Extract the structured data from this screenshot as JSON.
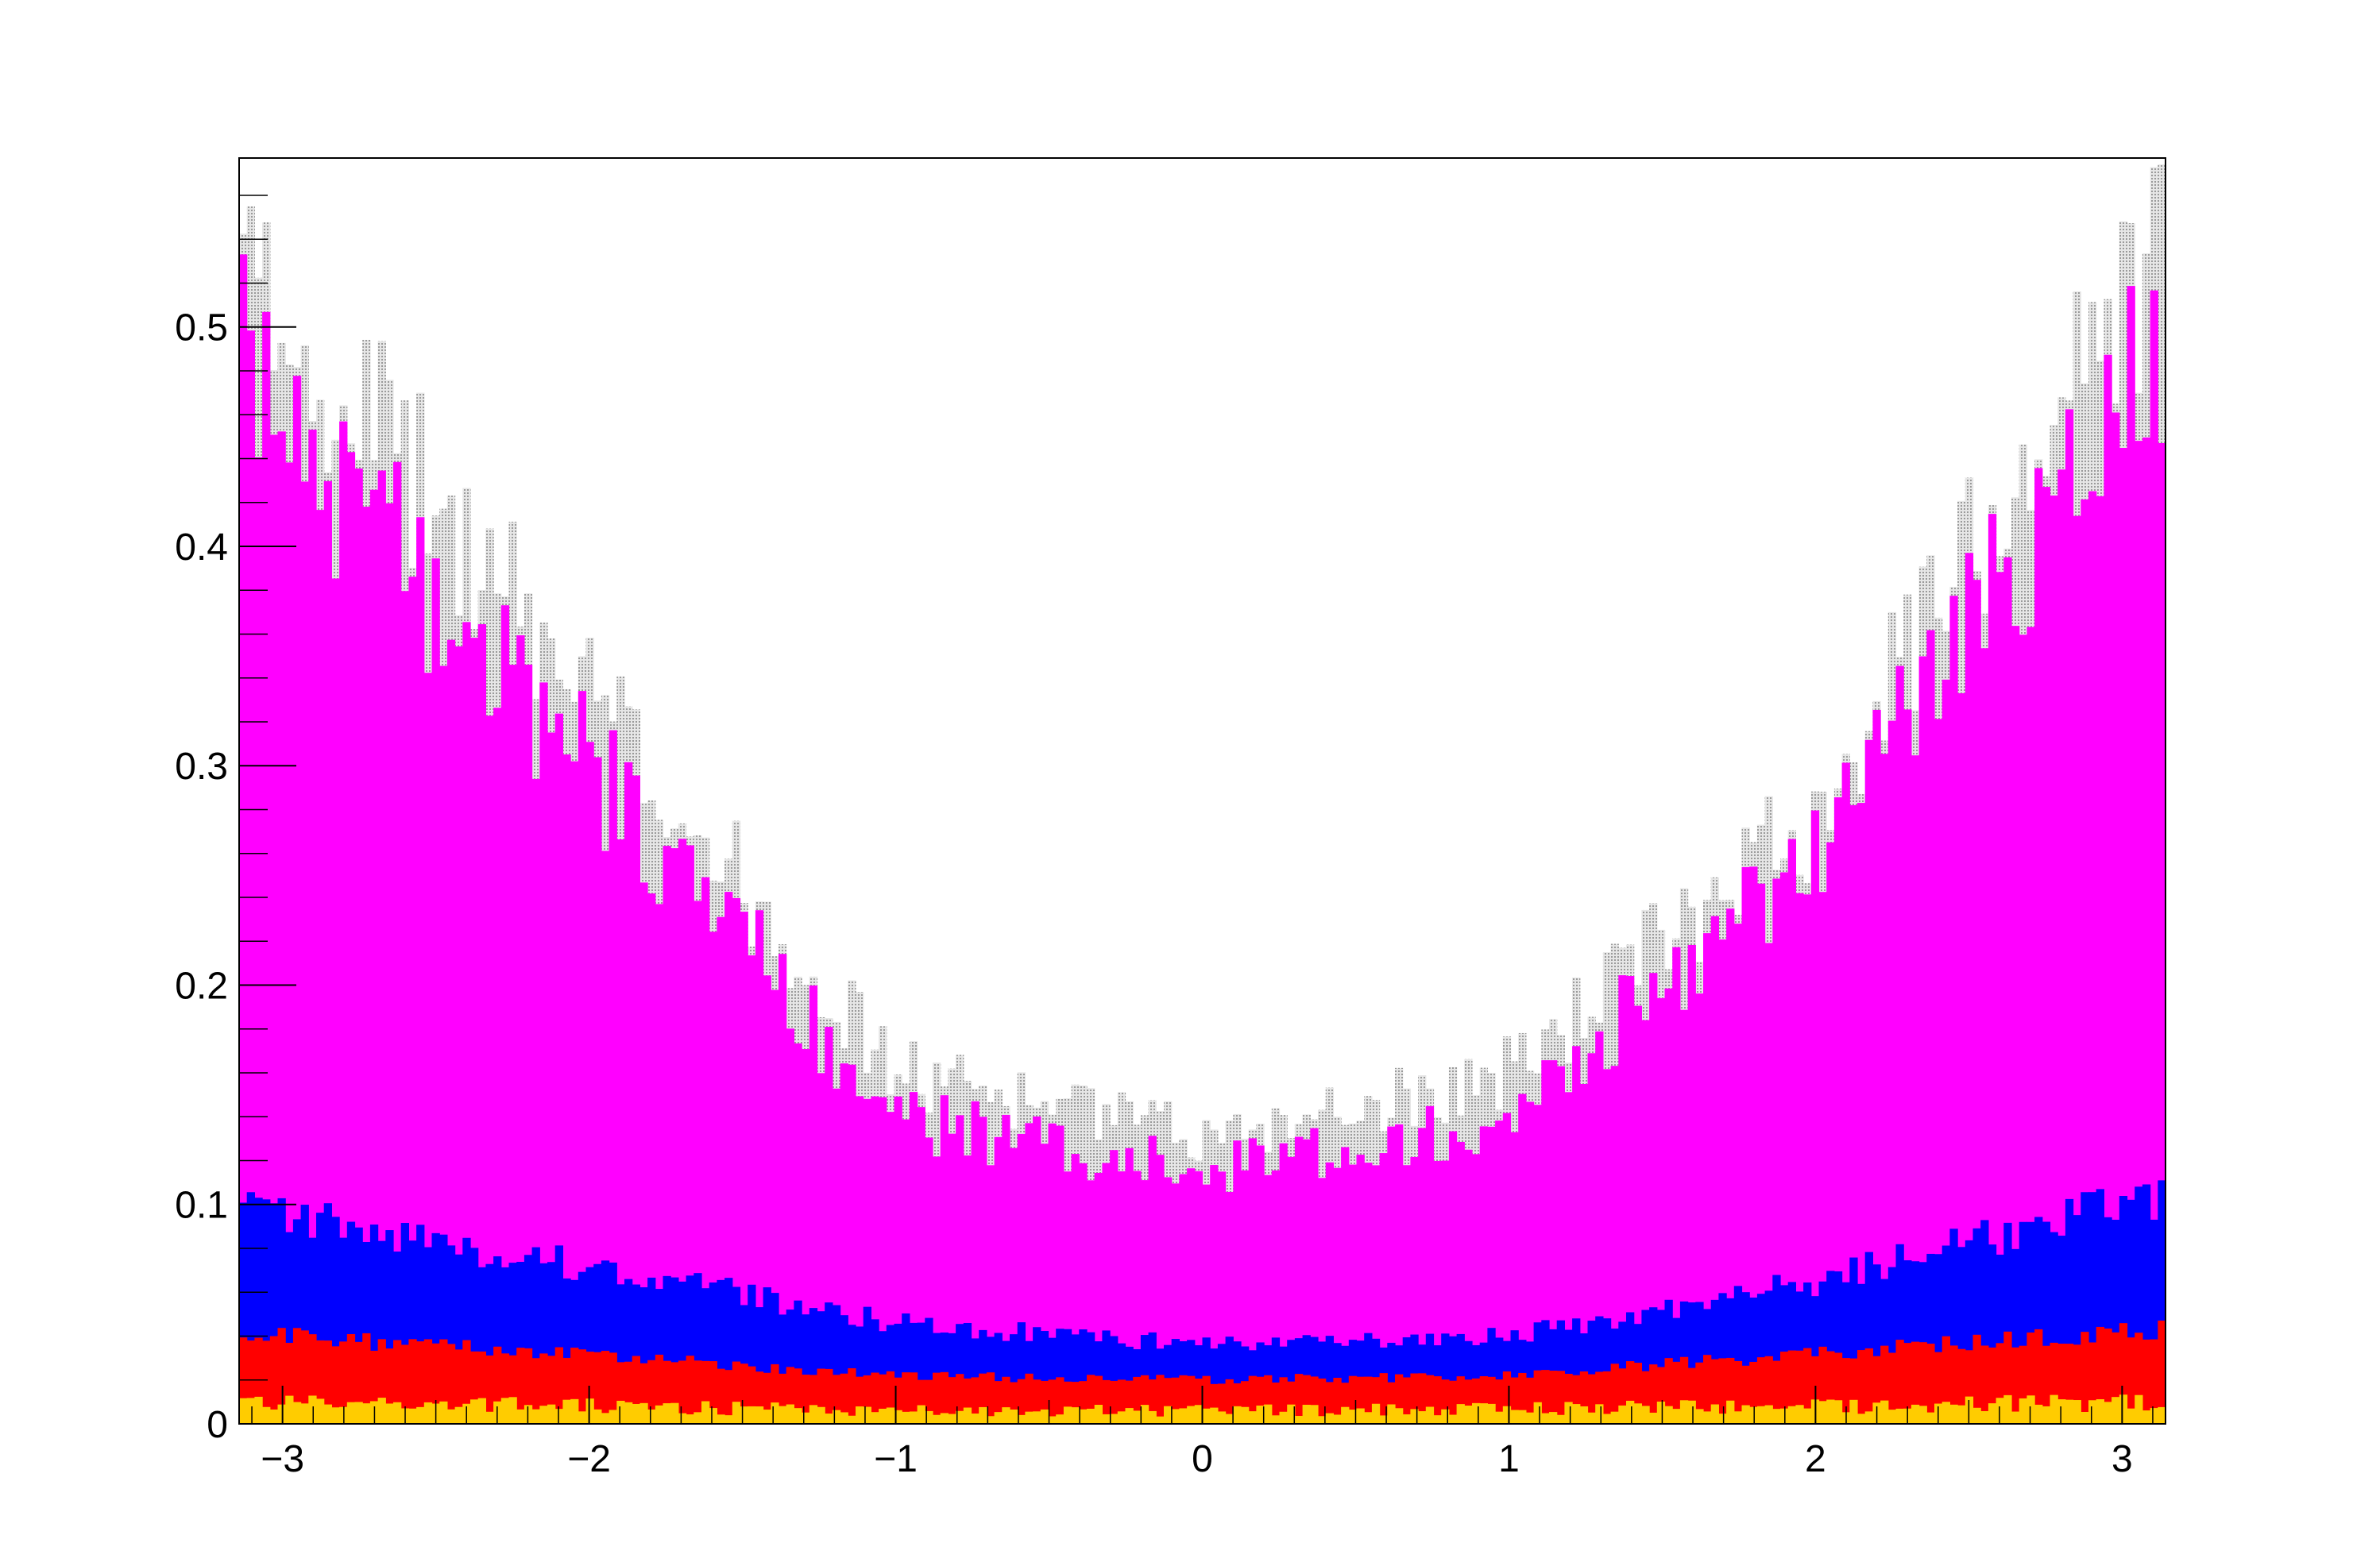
{
  "chart_data": {
    "type": "area",
    "title": "",
    "xlabel": "",
    "ylabel": "",
    "xlim": [
      -3.1416,
      3.1416
    ],
    "ylim": [
      0,
      0.577
    ],
    "x_ticks": [
      -3,
      -2,
      -1,
      0,
      1,
      2,
      3
    ],
    "x_tick_labels": [
      "−3",
      "−2",
      "−1",
      "0",
      "1",
      "2",
      "3"
    ],
    "y_ticks": [
      0,
      0.1,
      0.2,
      0.3,
      0.4,
      0.5
    ],
    "y_tick_labels": [
      "0",
      "0.1",
      "0.2",
      "0.3",
      "0.4",
      "0.5"
    ],
    "bins": 250,
    "grid": false,
    "stacked": true,
    "series": [
      {
        "name": "",
        "color": "#ffcc00",
        "profile": {
          "center_x": [
            -3,
            -2,
            -1,
            0,
            1,
            2,
            3
          ],
          "center_y": [
            0.01,
            0.008,
            0.006,
            0.006,
            0.007,
            0.008,
            0.01
          ]
        }
      },
      {
        "name": "",
        "color": "#ff0000",
        "profile": {
          "center_x": [
            -3,
            -2,
            -1,
            0,
            1,
            2,
            3
          ],
          "center_y": [
            0.04,
            0.031,
            0.022,
            0.02,
            0.022,
            0.032,
            0.042
          ]
        }
      },
      {
        "name": "",
        "color": "#0000ff",
        "profile": {
          "center_x": [
            -3,
            -2,
            -1,
            0,
            1,
            2,
            3
          ],
          "center_y": [
            0.095,
            0.072,
            0.046,
            0.036,
            0.04,
            0.065,
            0.1
          ]
        }
      },
      {
        "name": "",
        "color": "#ff00ff",
        "profile": {
          "center_x": [
            -3,
            -2,
            -1,
            0,
            1,
            2,
            3
          ],
          "center_y": [
            0.46,
            0.3,
            0.14,
            0.115,
            0.14,
            0.26,
            0.47
          ]
        }
      },
      {
        "name": "",
        "color": "#c0c0c0",
        "band": true,
        "profile": {
          "center_x": [
            -3,
            -2,
            -1,
            0,
            1,
            2,
            3
          ],
          "center_y": [
            0.5,
            0.33,
            0.16,
            0.13,
            0.16,
            0.28,
            0.51
          ]
        }
      }
    ],
    "colors": {
      "frame": "#000000",
      "background": "#ffffff",
      "band": "#bdbdbd"
    }
  }
}
